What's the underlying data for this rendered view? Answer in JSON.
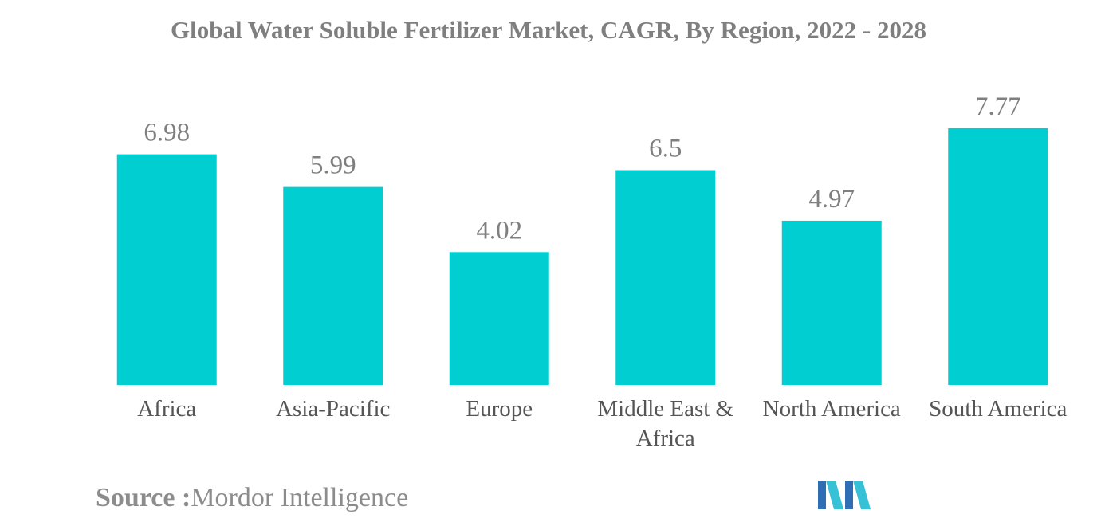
{
  "chart_data": {
    "type": "bar",
    "title": "Global Water Soluble Fertilizer Market, CAGR, By Region, 2022 - 2028",
    "categories": [
      "Africa",
      "Asia-Pacific",
      "Europe",
      "Middle East & Africa",
      "North America",
      "South America"
    ],
    "category_lines": [
      [
        "Africa"
      ],
      [
        "Asia-Pacific"
      ],
      [
        "Europe"
      ],
      [
        "Middle East &",
        "Africa"
      ],
      [
        "North America"
      ],
      [
        "South America"
      ]
    ],
    "values": [
      6.98,
      5.99,
      4.02,
      6.5,
      4.97,
      7.77
    ],
    "value_labels": [
      "6.98",
      "5.99",
      "4.02",
      "6.5",
      "4.97",
      "7.77"
    ],
    "ylim": [
      0,
      8.2
    ],
    "grid": false,
    "legend": "none",
    "colors": {
      "bar": "#00ced1",
      "value_label": "#7f7f7f",
      "category_label": "#555555"
    }
  },
  "source": {
    "label": "Source :",
    "text": "Mordor Intelligence"
  },
  "logo": {
    "icon": "mordor-intelligence-logo-icon",
    "colors": [
      "#2f6db5",
      "#37c1d6"
    ]
  }
}
